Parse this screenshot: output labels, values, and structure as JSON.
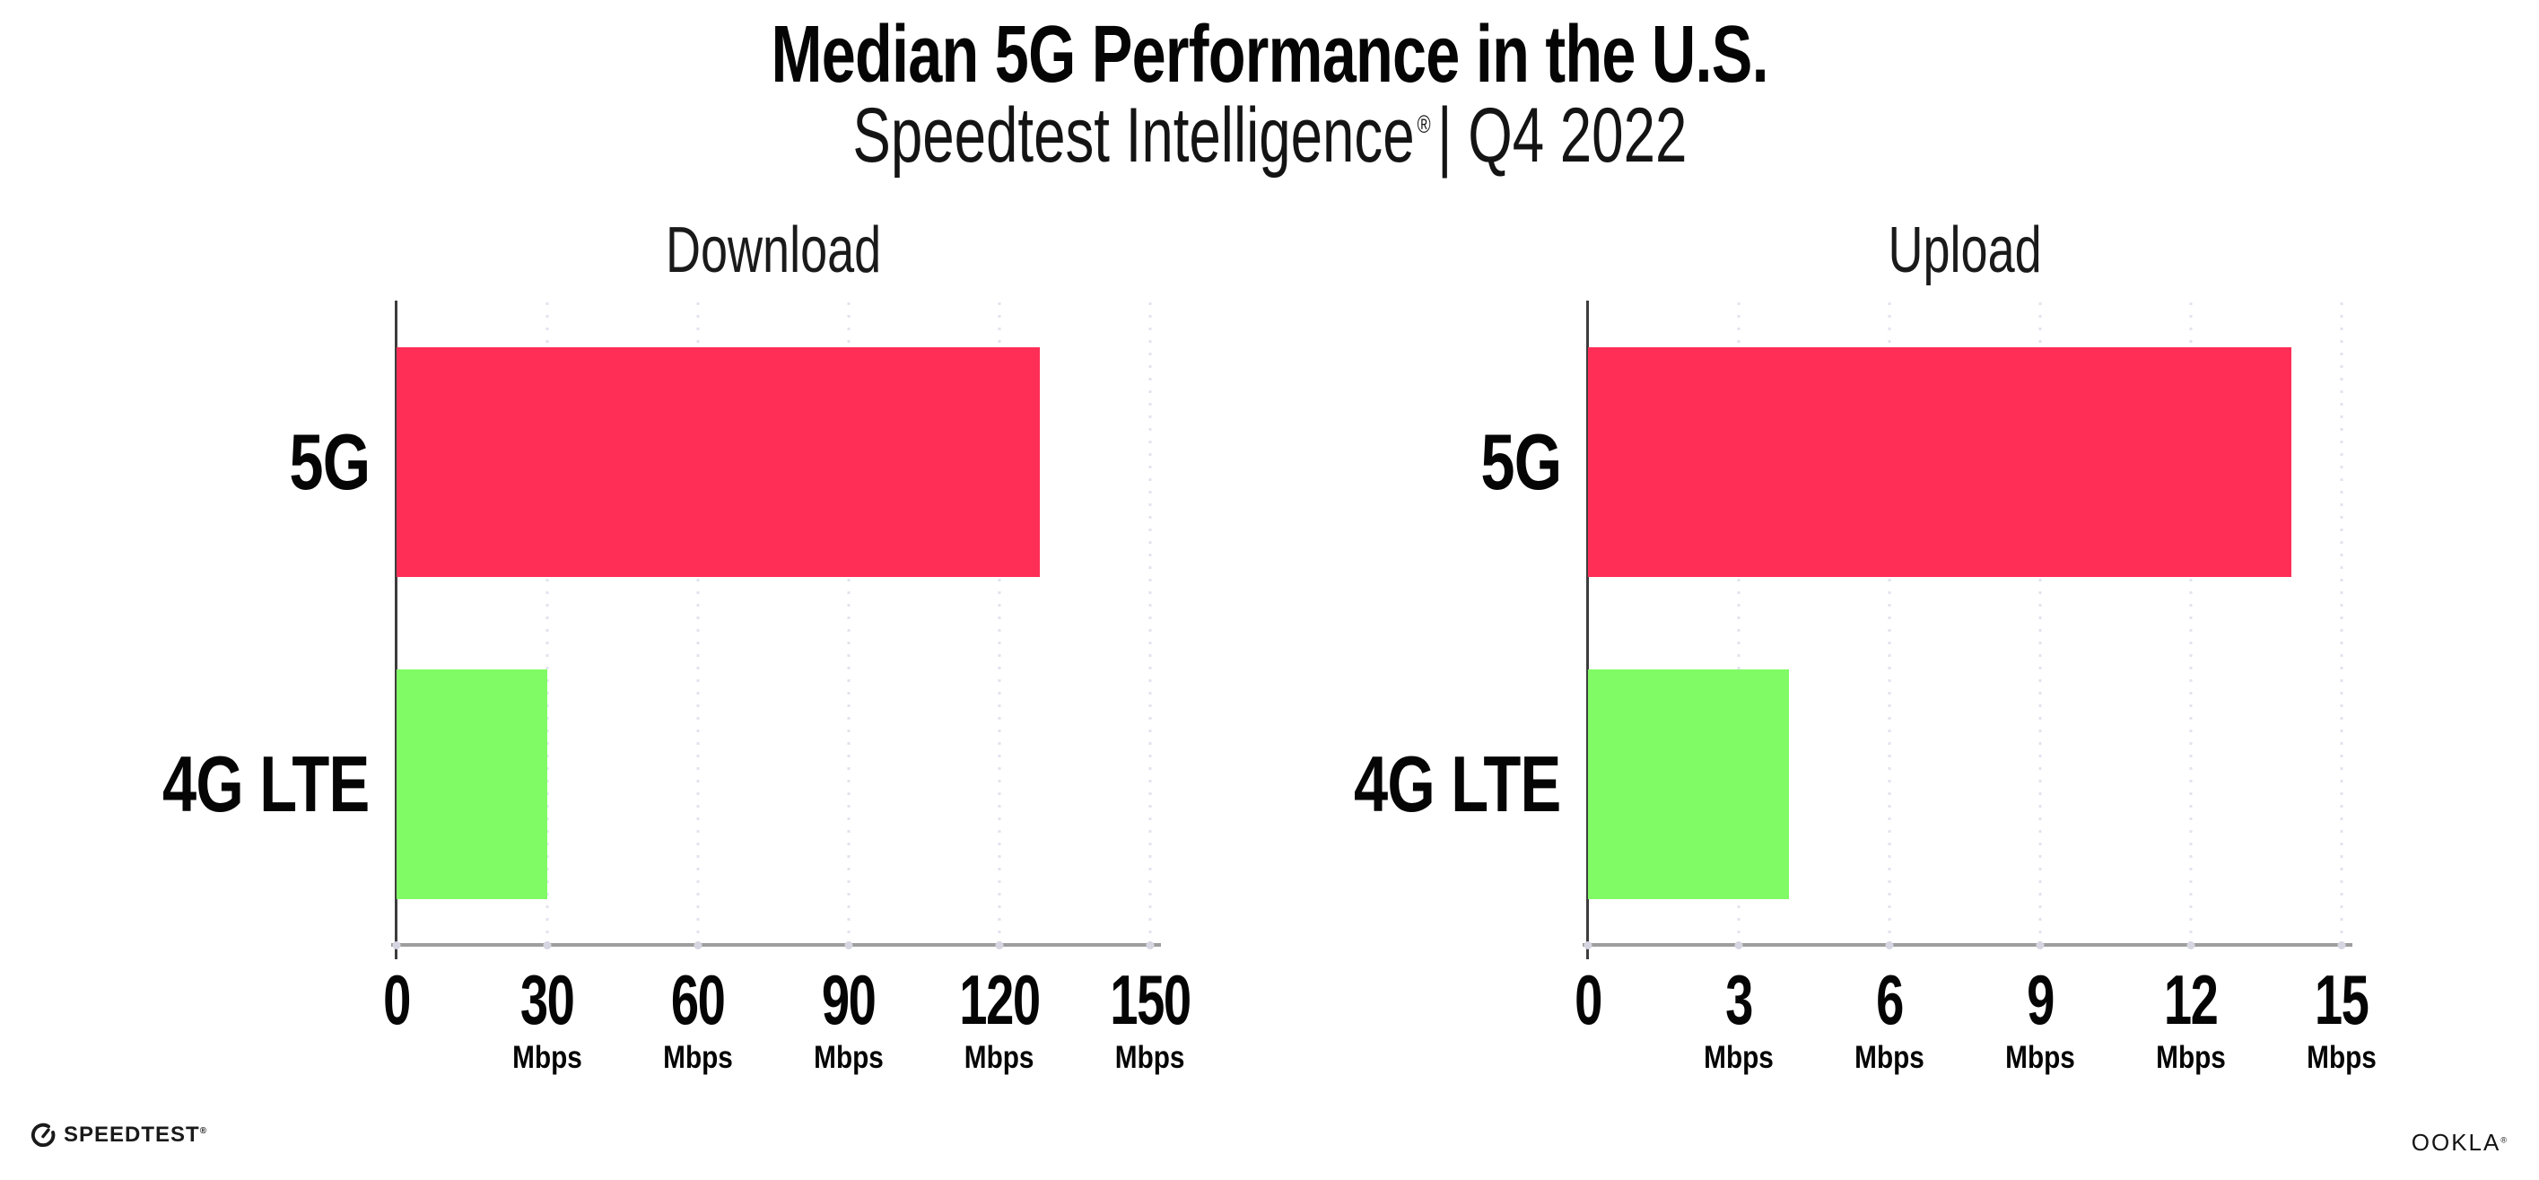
{
  "header": {
    "title": "Median 5G Performance in the U.S.",
    "subtitle_brand": "Speedtest Intelligence",
    "subtitle_reg": "®",
    "subtitle_divider": "| ",
    "subtitle_period": "Q4 2022"
  },
  "footer": {
    "speedtest_logo_text": "SPEEDTEST",
    "speedtest_reg": "®",
    "ookla_logo_text": "OOKLA",
    "ookla_reg": "®"
  },
  "colors": {
    "bar_5g": "#FF2E57",
    "bar_4g_lte": "#80FB66",
    "gridline": "#E3E3EF",
    "x_axis_line": "#9E9E9E",
    "y_axis_line": "#3D3D3D",
    "text": "#050505"
  },
  "chart_data": {
    "type": "bar",
    "orientation": "horizontal",
    "title": "Median 5G Performance in the U.S.",
    "subtitle": "Speedtest Intelligence® | Q4 2022",
    "categories": [
      "5G",
      "4G LTE"
    ],
    "category_colors": [
      "#FF2E57",
      "#80FB66"
    ],
    "legend": "none",
    "grid": "dotted-vertical",
    "charts": [
      {
        "title": "Download",
        "unit": "Mbps",
        "xlim": [
          0,
          150
        ],
        "ticks": [
          0,
          30,
          60,
          90,
          120,
          150
        ],
        "values": [
          128,
          30
        ]
      },
      {
        "title": "Upload",
        "unit": "Mbps",
        "xlim": [
          0,
          15
        ],
        "ticks": [
          0,
          3,
          6,
          9,
          12,
          15
        ],
        "values": [
          14,
          4
        ]
      }
    ]
  }
}
